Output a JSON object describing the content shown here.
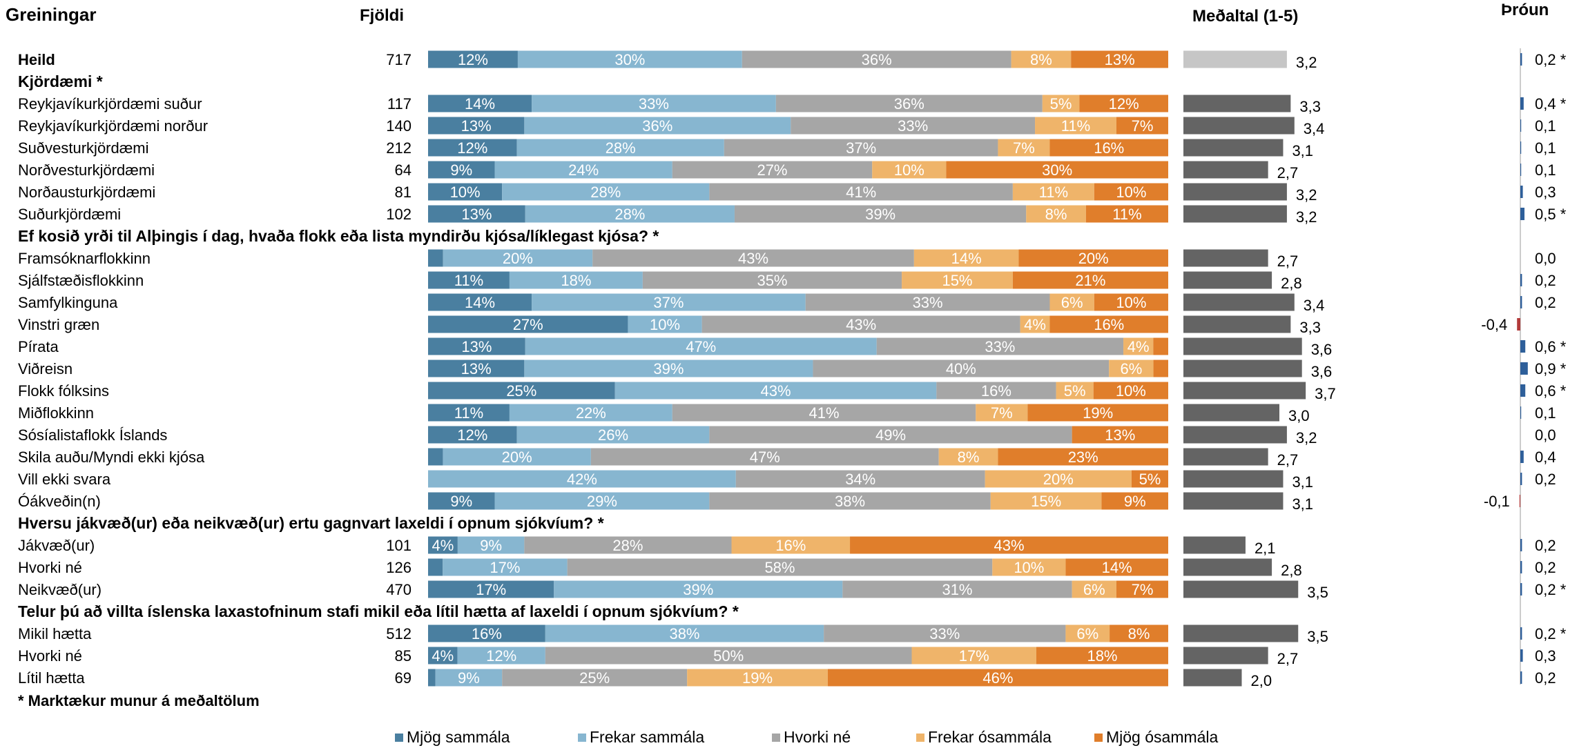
{
  "headers": {
    "greiningar": "Greiningar",
    "fjoldi": "Fjöldi",
    "medaltal": "Meðaltal (1-5)",
    "throun": "Þróun"
  },
  "colors": {
    "mjog_sammala": "#4a7fa0",
    "frekar_sammala": "#87b6d0",
    "hvorki_ne": "#a6a6a6",
    "frekar_osammala": "#efb46a",
    "mjog_osammala": "#e07e2b",
    "mean_bar": "#646464",
    "mean_bar_total": "#c6c6c6",
    "trend_pos": "#2e5f9a",
    "trend_neg": "#b23a3a"
  },
  "footnote": "* Marktækur munur á meðaltölum",
  "chart_data": {
    "type": "bar",
    "orientation": "horizontal",
    "stacked": true,
    "normalized": true,
    "legend_position": "bottom",
    "series": [
      {
        "name": "Mjög sammála"
      },
      {
        "name": "Frekar sammála"
      },
      {
        "name": "Hvorki né"
      },
      {
        "name": "Frekar ósammála"
      },
      {
        "name": "Mjög ósammála"
      }
    ],
    "mean_scale": [
      1,
      5
    ],
    "rows": [
      {
        "kind": "row",
        "label": "Heild",
        "bold": true,
        "n": "717",
        "values": [
          12,
          30,
          36,
          8,
          13
        ],
        "labels": [
          "12%",
          "30%",
          "36%",
          "8%",
          "13%"
        ],
        "mean": 3.2,
        "mean_label": "3,2",
        "total": true,
        "trend": 0.2,
        "trend_label": "0,2 *"
      },
      {
        "kind": "header",
        "label": "Kjördæmi *"
      },
      {
        "kind": "row",
        "label": "Reykjavíkurkjördæmi suður",
        "n": "117",
        "values": [
          14,
          33,
          36,
          5,
          12
        ],
        "labels": [
          "14%",
          "33%",
          "36%",
          "5%",
          "12%"
        ],
        "mean": 3.3,
        "mean_label": "3,3",
        "trend": 0.4,
        "trend_label": "0,4 *"
      },
      {
        "kind": "row",
        "label": "Reykjavíkurkjördæmi norður",
        "n": "140",
        "values": [
          13,
          36,
          33,
          11,
          7
        ],
        "labels": [
          "13%",
          "36%",
          "33%",
          "11%",
          "7%"
        ],
        "mean": 3.4,
        "mean_label": "3,4",
        "trend": 0.1,
        "trend_label": "0,1"
      },
      {
        "kind": "row",
        "label": "Suðvesturkjördæmi",
        "n": "212",
        "values": [
          12,
          28,
          37,
          7,
          16
        ],
        "labels": [
          "12%",
          "28%",
          "37%",
          "7%",
          "16%"
        ],
        "mean": 3.1,
        "mean_label": "3,1",
        "trend": 0.1,
        "trend_label": "0,1"
      },
      {
        "kind": "row",
        "label": "Norðvesturkjördæmi",
        "n": "64",
        "values": [
          9,
          24,
          27,
          10,
          30
        ],
        "labels": [
          "9%",
          "24%",
          "27%",
          "10%",
          "30%"
        ],
        "mean": 2.7,
        "mean_label": "2,7",
        "trend": 0.1,
        "trend_label": "0,1"
      },
      {
        "kind": "row",
        "label": "Norðausturkjördæmi",
        "n": "81",
        "values": [
          10,
          28,
          41,
          11,
          10
        ],
        "labels": [
          "10%",
          "28%",
          "41%",
          "11%",
          "10%"
        ],
        "mean": 3.2,
        "mean_label": "3,2",
        "trend": 0.3,
        "trend_label": "0,3"
      },
      {
        "kind": "row",
        "label": "Suðurkjördæmi",
        "n": "102",
        "values": [
          13,
          28,
          39,
          8,
          11
        ],
        "labels": [
          "13%",
          "28%",
          "39%",
          "8%",
          "11%"
        ],
        "mean": 3.2,
        "mean_label": "3,2",
        "trend": 0.5,
        "trend_label": "0,5 *"
      },
      {
        "kind": "header",
        "label": "Ef kosið yrði til Alþingis í dag, hvaða flokk eða lista myndirðu kjósa/líklegast kjósa? *"
      },
      {
        "kind": "row",
        "label": "Framsóknarflokkinn",
        "n": "",
        "values": [
          2,
          20,
          43,
          14,
          20
        ],
        "labels": [
          "",
          "20%",
          "43%",
          "14%",
          "20%"
        ],
        "mean": 2.7,
        "mean_label": "2,7",
        "trend": 0.0,
        "trend_label": "0,0"
      },
      {
        "kind": "row",
        "label": "Sjálfstæðisflokkinn",
        "n": "",
        "values": [
          11,
          18,
          35,
          15,
          21
        ],
        "labels": [
          "11%",
          "18%",
          "35%",
          "15%",
          "21%"
        ],
        "mean": 2.8,
        "mean_label": "2,8",
        "trend": 0.2,
        "trend_label": "0,2"
      },
      {
        "kind": "row",
        "label": "Samfylkinguna",
        "n": "",
        "values": [
          14,
          37,
          33,
          6,
          10
        ],
        "labels": [
          "14%",
          "37%",
          "33%",
          "6%",
          "10%"
        ],
        "mean": 3.4,
        "mean_label": "3,4",
        "trend": 0.2,
        "trend_label": "0,2"
      },
      {
        "kind": "row",
        "label": "Vinstri græn",
        "n": "",
        "values": [
          27,
          10,
          43,
          4,
          16
        ],
        "labels": [
          "27%",
          "10%",
          "43%",
          "4%",
          "16%"
        ],
        "mean": 3.3,
        "mean_label": "3,3",
        "trend": -0.4,
        "trend_label": "-0,4"
      },
      {
        "kind": "row",
        "label": "Pírata",
        "n": "",
        "values": [
          13,
          47,
          33,
          4,
          2
        ],
        "labels": [
          "13%",
          "47%",
          "33%",
          "4%",
          ""
        ],
        "mean": 3.6,
        "mean_label": "3,6",
        "trend": 0.6,
        "trend_label": "0,6 *"
      },
      {
        "kind": "row",
        "label": "Viðreisn",
        "n": "",
        "values": [
          13,
          39,
          40,
          6,
          2
        ],
        "labels": [
          "13%",
          "39%",
          "40%",
          "6%",
          ""
        ],
        "mean": 3.6,
        "mean_label": "3,6",
        "trend": 0.9,
        "trend_label": "0,9 *"
      },
      {
        "kind": "row",
        "label": "Flokk fólksins",
        "n": "",
        "values": [
          25,
          43,
          16,
          5,
          10
        ],
        "labels": [
          "25%",
          "43%",
          "16%",
          "5%",
          "10%"
        ],
        "mean": 3.7,
        "mean_label": "3,7",
        "trend": 0.6,
        "trend_label": "0,6 *"
      },
      {
        "kind": "row",
        "label": "Miðflokkinn",
        "n": "",
        "values": [
          11,
          22,
          41,
          7,
          19
        ],
        "labels": [
          "11%",
          "22%",
          "41%",
          "7%",
          "19%"
        ],
        "mean": 3.0,
        "mean_label": "3,0",
        "trend": 0.1,
        "trend_label": "0,1"
      },
      {
        "kind": "row",
        "label": "Sósíalistaflokk Íslands",
        "n": "",
        "values": [
          12,
          26,
          49,
          0,
          13
        ],
        "labels": [
          "12%",
          "26%",
          "49%",
          "",
          "13%"
        ],
        "mean": 3.2,
        "mean_label": "3,2",
        "trend": 0.0,
        "trend_label": "0,0"
      },
      {
        "kind": "row",
        "label": "Skila auðu/Myndi ekki kjósa",
        "n": "",
        "values": [
          2,
          20,
          47,
          8,
          23
        ],
        "labels": [
          "",
          "20%",
          "47%",
          "8%",
          "23%"
        ],
        "mean": 2.7,
        "mean_label": "2,7",
        "trend": 0.4,
        "trend_label": "0,4"
      },
      {
        "kind": "row",
        "label": "Vill ekki svara",
        "n": "",
        "values": [
          0,
          42,
          34,
          20,
          5
        ],
        "labels": [
          "",
          "42%",
          "34%",
          "20%",
          "5%"
        ],
        "mean": 3.1,
        "mean_label": "3,1",
        "trend": 0.2,
        "trend_label": "0,2"
      },
      {
        "kind": "row",
        "label": "Óákveðin(n)",
        "n": "",
        "values": [
          9,
          29,
          38,
          15,
          9
        ],
        "labels": [
          "9%",
          "29%",
          "38%",
          "15%",
          "9%"
        ],
        "mean": 3.1,
        "mean_label": "3,1",
        "trend": -0.1,
        "trend_label": "-0,1"
      },
      {
        "kind": "header",
        "label": "Hversu jákvæð(ur) eða neikvæð(ur) ertu gagnvart laxeldi í opnum sjókvíum? *"
      },
      {
        "kind": "row",
        "label": "Jákvæð(ur)",
        "n": "101",
        "values": [
          4,
          9,
          28,
          16,
          43
        ],
        "labels": [
          "4%",
          "9%",
          "28%",
          "16%",
          "43%"
        ],
        "mean": 2.1,
        "mean_label": "2,1",
        "trend": 0.2,
        "trend_label": "0,2"
      },
      {
        "kind": "row",
        "label": "Hvorki né",
        "n": "126",
        "values": [
          2,
          17,
          58,
          10,
          14
        ],
        "labels": [
          "",
          "17%",
          "58%",
          "10%",
          "14%"
        ],
        "mean": 2.8,
        "mean_label": "2,8",
        "trend": 0.2,
        "trend_label": "0,2"
      },
      {
        "kind": "row",
        "label": "Neikvæð(ur)",
        "n": "470",
        "values": [
          17,
          39,
          31,
          6,
          7
        ],
        "labels": [
          "17%",
          "39%",
          "31%",
          "6%",
          "7%"
        ],
        "mean": 3.5,
        "mean_label": "3,5",
        "trend": 0.2,
        "trend_label": "0,2 *"
      },
      {
        "kind": "header",
        "label": "Telur þú að villta íslenska laxastofninum stafi mikil eða lítil hætta af laxeldi í opnum sjókvíum? *"
      },
      {
        "kind": "row",
        "label": "Mikil hætta",
        "n": "512",
        "values": [
          16,
          38,
          33,
          6,
          8
        ],
        "labels": [
          "16%",
          "38%",
          "33%",
          "6%",
          "8%"
        ],
        "mean": 3.5,
        "mean_label": "3,5",
        "trend": 0.2,
        "trend_label": "0,2 *"
      },
      {
        "kind": "row",
        "label": "Hvorki né",
        "n": "85",
        "values": [
          4,
          12,
          50,
          17,
          18
        ],
        "labels": [
          "4%",
          "12%",
          "50%",
          "17%",
          "18%"
        ],
        "mean": 2.7,
        "mean_label": "2,7",
        "trend": 0.3,
        "trend_label": "0,3"
      },
      {
        "kind": "row",
        "label": "Lítil hætta",
        "n": "69",
        "values": [
          1,
          9,
          25,
          19,
          46
        ],
        "labels": [
          "",
          "9%",
          "25%",
          "19%",
          "46%"
        ],
        "mean": 2.0,
        "mean_label": "2,0",
        "trend": 0.2,
        "trend_label": "0,2"
      }
    ]
  }
}
